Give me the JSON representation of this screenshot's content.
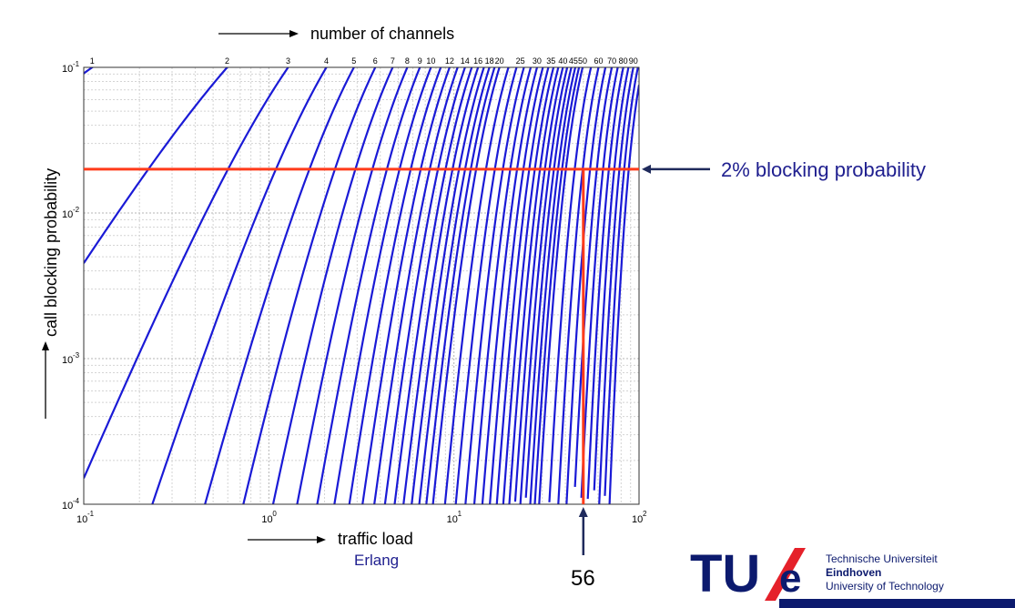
{
  "chart_data": {
    "type": "line",
    "title": "",
    "top_axis_label": "number of channels",
    "xlabel": "traffic load",
    "xunit": "Erlang",
    "ylabel": "call blocking probability",
    "xscale": "log",
    "yscale": "log",
    "xlim": [
      0.1,
      100
    ],
    "ylim": [
      0.0001,
      0.1
    ],
    "grid": true,
    "x_ticks": [
      {
        "label": "10",
        "exp": "-1",
        "value": 0.1
      },
      {
        "label": "10",
        "exp": "0",
        "value": 1
      },
      {
        "label": "10",
        "exp": "1",
        "value": 10
      },
      {
        "label": "10",
        "exp": "2",
        "value": 100
      }
    ],
    "y_ticks": [
      {
        "label": "10",
        "exp": "-1",
        "value": 0.1
      },
      {
        "label": "10",
        "exp": "-2",
        "value": 0.01
      },
      {
        "label": "10",
        "exp": "-3",
        "value": 0.001
      },
      {
        "label": "10",
        "exp": "-4",
        "value": 0.0001
      }
    ],
    "channel_labels": [
      "1",
      "2",
      "3",
      "4",
      "5",
      "6",
      "7",
      "8",
      "9",
      "10",
      "12",
      "14",
      "16",
      "18",
      "20",
      "25",
      "30",
      "35",
      "40",
      "45",
      "50",
      "60",
      "70",
      "80",
      "90"
    ],
    "series_channels": [
      1,
      2,
      3,
      4,
      5,
      6,
      7,
      8,
      9,
      10,
      11,
      12,
      13,
      14,
      15,
      16,
      17,
      18,
      19,
      20,
      22,
      24,
      26,
      28,
      30,
      32,
      34,
      36,
      38,
      40,
      42,
      44,
      46,
      48,
      50,
      55,
      60,
      65,
      70,
      75,
      80,
      85,
      90,
      95,
      100
    ],
    "series_color": "#1a1ad6",
    "annotations": {
      "blocking_line_value": 0.02,
      "blocking_label": "2% blocking probability",
      "traffic_marker_value": 50,
      "traffic_marker_label": "56",
      "annotation_color": "#ff3b1a",
      "arrow_color": "#1f2a5c"
    }
  },
  "logo": {
    "letters": "TU",
    "e_letter": "e",
    "line1": "Technische Universiteit",
    "line2": "Eindhoven",
    "line3": "University of Technology",
    "color": "#0c1a6e",
    "slash_color": "#e5212a"
  }
}
